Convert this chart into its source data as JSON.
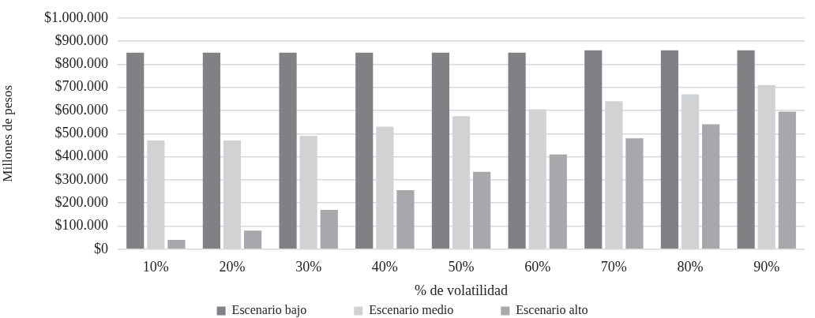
{
  "chart_data": {
    "type": "bar",
    "xlabel": "% de volatilidad",
    "ylabel": "Millones de pesos",
    "categories": [
      "10%",
      "20%",
      "30%",
      "40%",
      "50%",
      "60%",
      "70%",
      "80%",
      "90%"
    ],
    "series": [
      {
        "name": "Escenario bajo",
        "color": "#808184",
        "values": [
          850000,
          850000,
          850000,
          850000,
          850000,
          850000,
          860000,
          860000,
          860000
        ]
      },
      {
        "name": "Escenario medio",
        "color": "#d1d2d4",
        "values": [
          470000,
          470000,
          490000,
          530000,
          575000,
          605000,
          640000,
          670000,
          710000
        ]
      },
      {
        "name": "Escenario alto",
        "color": "#a7a8ab",
        "values": [
          40000,
          80000,
          170000,
          255000,
          335000,
          410000,
          480000,
          540000,
          595000
        ]
      }
    ],
    "ylim": [
      0,
      1000000
    ],
    "yticks": [
      {
        "value": 0,
        "label": "$0"
      },
      {
        "value": 100000,
        "label": "$100.000"
      },
      {
        "value": 200000,
        "label": "$200.000"
      },
      {
        "value": 300000,
        "label": "$300.000"
      },
      {
        "value": 400000,
        "label": "$400.000"
      },
      {
        "value": 500000,
        "label": "$500.000"
      },
      {
        "value": 600000,
        "label": "$600.000"
      },
      {
        "value": 700000,
        "label": "$700.000"
      },
      {
        "value": 800000,
        "label": "$800.000"
      },
      {
        "value": 900000,
        "label": "$900.000"
      },
      {
        "value": 1000000,
        "label": "$1.000.000"
      }
    ],
    "grid": "y",
    "legend": "bottom"
  }
}
